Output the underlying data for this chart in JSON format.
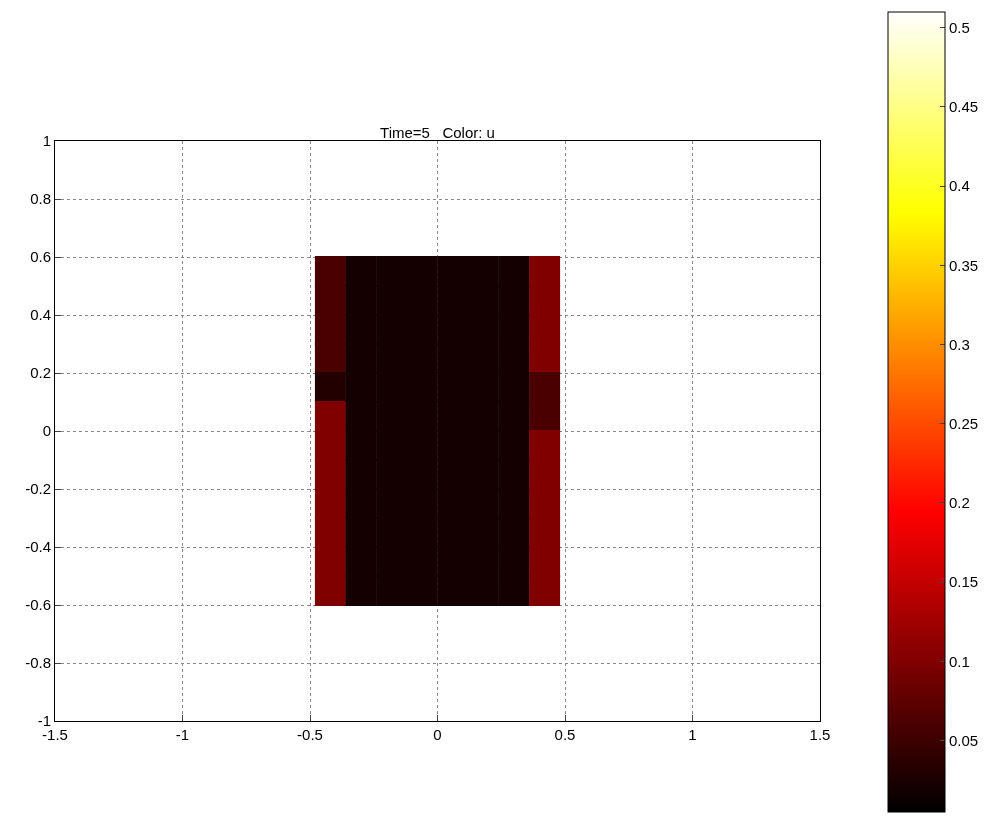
{
  "chart_data": {
    "type": "scatter",
    "title": "Time=5   Color: u",
    "marker": "square",
    "x": [
      -0.42,
      -0.3,
      -0.18,
      -0.06,
      0.06,
      0.18,
      0.3,
      0.42,
      -0.42,
      -0.3,
      -0.18,
      -0.06,
      0.06,
      0.18,
      0.3,
      0.42,
      -0.42,
      -0.3,
      -0.18,
      -0.06,
      0.06,
      0.18,
      0.3,
      0.42,
      -0.42,
      -0.3,
      -0.18,
      -0.06,
      0.06,
      0.18,
      0.3,
      0.42,
      -0.42,
      -0.3,
      -0.18,
      -0.06,
      0.06,
      0.18,
      0.3,
      0.42,
      -0.42,
      -0.3,
      -0.18,
      -0.06,
      0.06,
      0.18,
      0.3,
      0.42,
      -0.42,
      -0.3,
      -0.18,
      -0.06,
      0.06,
      0.18,
      0.3,
      0.42,
      -0.42,
      -0.3,
      -0.18,
      -0.06,
      0.06,
      0.18,
      0.3,
      0.42,
      -0.42,
      -0.3,
      -0.18,
      -0.06,
      0.06,
      0.18,
      0.3,
      0.42,
      -0.42,
      -0.3,
      -0.18,
      -0.06,
      0.06,
      0.18,
      0.3,
      0.42,
      -0.42,
      -0.3,
      -0.18,
      -0.06,
      0.06,
      0.18,
      0.3,
      0.42,
      -0.42,
      -0.3,
      -0.18,
      -0.06,
      0.06,
      0.18,
      0.3,
      0.42
    ],
    "values": [
      0.55,
      0.55,
      0.55,
      0.55,
      0.55,
      0.55,
      0.55,
      0.55,
      0.45,
      0.45,
      0.45,
      0.45,
      0.45,
      0.45,
      0.45,
      0.45,
      0.35,
      0.35,
      0.35,
      0.35,
      0.35,
      0.35,
      0.35,
      0.35,
      0.25,
      0.25,
      0.25,
      0.25,
      0.25,
      0.25,
      0.25,
      0.25,
      0.15,
      0.15,
      0.15,
      0.15,
      0.15,
      0.15,
      0.15,
      0.15,
      0.05,
      0.05,
      0.05,
      0.05,
      0.05,
      0.05,
      0.05,
      0.05,
      -0.05,
      -0.05,
      -0.05,
      -0.05,
      -0.05,
      -0.05,
      -0.05,
      -0.05,
      -0.15,
      -0.15,
      -0.15,
      -0.15,
      -0.15,
      -0.15,
      -0.15,
      -0.15,
      -0.25,
      -0.25,
      -0.25,
      -0.25,
      -0.25,
      -0.25,
      -0.25,
      -0.25,
      -0.35,
      -0.35,
      -0.35,
      -0.35,
      -0.35,
      -0.35,
      -0.35,
      -0.35,
      -0.45,
      -0.45,
      -0.45,
      -0.45,
      -0.45,
      -0.45,
      -0.45,
      -0.45,
      -0.55,
      -0.55,
      -0.55,
      -0.55,
      -0.55,
      -0.55,
      -0.55,
      -0.55
    ],
    "cvalues": [
      0.06,
      0.02,
      0.02,
      0.02,
      0.02,
      0.02,
      0.02,
      0.1,
      0.06,
      0.02,
      0.02,
      0.02,
      0.02,
      0.02,
      0.02,
      0.1,
      0.06,
      0.02,
      0.02,
      0.02,
      0.02,
      0.02,
      0.02,
      0.1,
      0.06,
      0.02,
      0.02,
      0.02,
      0.02,
      0.02,
      0.02,
      0.1,
      0.03,
      0.02,
      0.02,
      0.02,
      0.02,
      0.02,
      0.02,
      0.06,
      0.1,
      0.02,
      0.02,
      0.02,
      0.02,
      0.02,
      0.02,
      0.06,
      0.1,
      0.02,
      0.02,
      0.02,
      0.02,
      0.02,
      0.02,
      0.1,
      0.1,
      0.02,
      0.02,
      0.02,
      0.02,
      0.02,
      0.02,
      0.1,
      0.1,
      0.02,
      0.02,
      0.02,
      0.02,
      0.02,
      0.02,
      0.1,
      0.1,
      0.02,
      0.02,
      0.02,
      0.02,
      0.02,
      0.02,
      0.1,
      0.1,
      0.02,
      0.02,
      0.02,
      0.02,
      0.02,
      0.02,
      0.1,
      0.1,
      0.02,
      0.02,
      0.02,
      0.02,
      0.02,
      0.02,
      0.1
    ],
    "clim": [
      0.005,
      0.51
    ],
    "cticks": [
      0.05,
      0.1,
      0.15,
      0.2,
      0.25,
      0.3,
      0.35,
      0.4,
      0.45,
      0.5
    ],
    "xlim": [
      -1.5,
      1.5
    ],
    "xticks": [
      -1.5,
      -1,
      -0.5,
      0,
      0.5,
      1,
      1.5
    ],
    "ylim": [
      -1,
      1
    ],
    "yticks": [
      -1,
      -0.8,
      -0.6,
      -0.4,
      -0.2,
      0,
      0.2,
      0.4,
      0.6,
      0.8,
      1
    ],
    "grid": true
  }
}
